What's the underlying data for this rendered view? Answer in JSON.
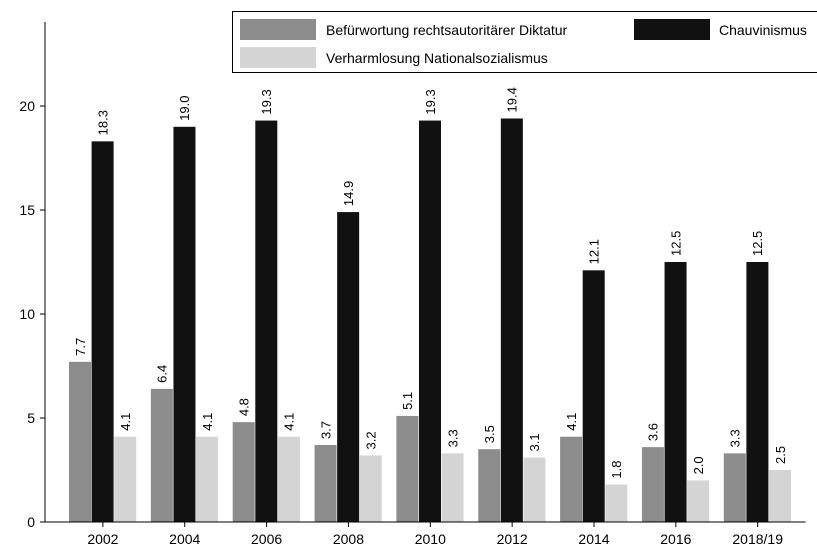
{
  "chart_data": {
    "type": "bar",
    "categories": [
      "2002",
      "2004",
      "2006",
      "2008",
      "2010",
      "2012",
      "2014",
      "2016",
      "2018/19"
    ],
    "series": [
      {
        "name": "Befürwortung rechtsautoritärer Diktatur",
        "color": "#8c8c8c",
        "values": [
          7.7,
          6.4,
          4.8,
          3.7,
          5.1,
          3.5,
          4.1,
          3.6,
          3.3
        ],
        "labels": [
          "7.7",
          "6.4",
          "4.8",
          "3.7",
          "5.1",
          "3.5",
          "4.1",
          "3.6",
          "3.3"
        ]
      },
      {
        "name": "Chauvinismus",
        "color": "#111111",
        "values": [
          18.3,
          19.0,
          19.3,
          14.9,
          19.3,
          19.4,
          12.1,
          12.5,
          12.5
        ],
        "labels": [
          "18.3",
          "19.0",
          "19.3",
          "14.9",
          "19.3",
          "19.4",
          "12.1",
          "12.5",
          "12.5"
        ]
      },
      {
        "name": "Verharmlosung Nationalsozialismus",
        "color": "#d4d4d4",
        "values": [
          4.1,
          4.1,
          4.1,
          3.2,
          3.3,
          3.1,
          1.8,
          2.0,
          2.5
        ],
        "labels": [
          "4.1",
          "4.1",
          "4.1",
          "3.2",
          "3.3",
          "3.1",
          "1.8",
          "2.0",
          "2.5"
        ]
      }
    ],
    "yticks": [
      "0",
      "5",
      "10",
      "15",
      "20"
    ],
    "ylim": [
      0,
      23.5
    ],
    "grid": false,
    "legend_position": "top"
  }
}
